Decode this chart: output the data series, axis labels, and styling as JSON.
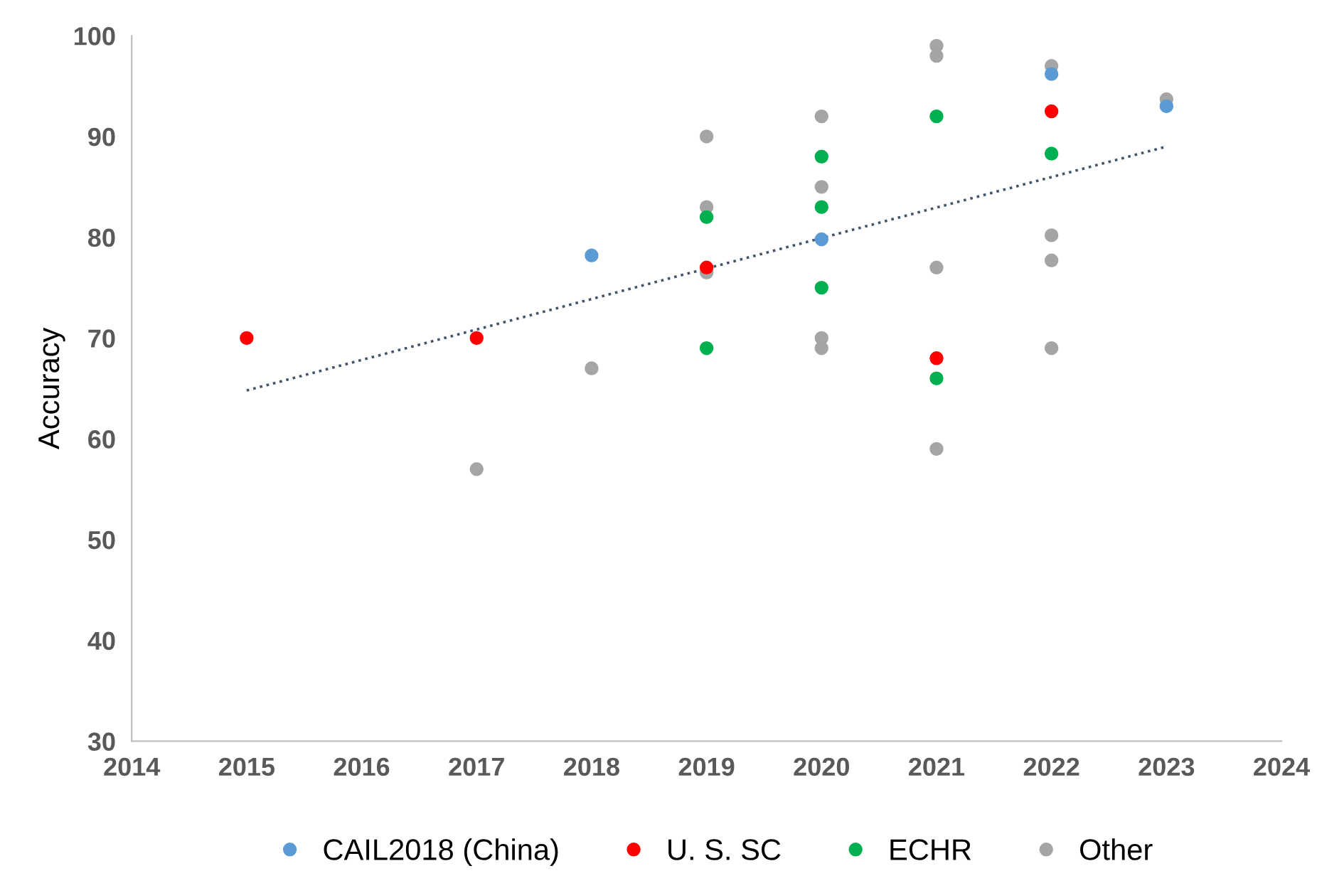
{
  "chart_data": {
    "type": "scatter",
    "ylabel": "Accuracy",
    "xlim": [
      2014,
      2024
    ],
    "xticks": [
      2014,
      2015,
      2016,
      2017,
      2018,
      2019,
      2020,
      2021,
      2022,
      2023,
      2024
    ],
    "ylim": [
      30,
      100
    ],
    "yticks": [
      30,
      40,
      50,
      60,
      70,
      80,
      90,
      100
    ],
    "grid": false,
    "legend": "bottom",
    "marker": "circle",
    "series": [
      {
        "name": "CAIL2018 (China)",
        "color": "#5b9bd5",
        "x": [
          2018,
          2020,
          2022,
          2023
        ],
        "values": [
          78.2,
          79.8,
          96.2,
          93
        ]
      },
      {
        "name": "U. S. SC",
        "color": "#ff0000",
        "x": [
          2015,
          2017,
          2019,
          2021,
          2022
        ],
        "values": [
          70,
          70,
          77,
          68,
          92.5
        ]
      },
      {
        "name": "ECHR",
        "color": "#00b050",
        "x": [
          2019,
          2019,
          2020,
          2020,
          2020,
          2021,
          2021,
          2022
        ],
        "values": [
          82,
          69,
          88,
          83,
          75,
          92,
          66,
          88.3
        ]
      },
      {
        "name": "Other",
        "color": "#a5a5a5",
        "x": [
          2017,
          2018,
          2019,
          2019,
          2019,
          2020,
          2020,
          2020,
          2020,
          2021,
          2021,
          2021,
          2021,
          2022,
          2022,
          2022,
          2022,
          2023
        ],
        "values": [
          57,
          67,
          90,
          83,
          76.5,
          92,
          85,
          70,
          69,
          99,
          98,
          77,
          59,
          97,
          80.2,
          77.7,
          69,
          93.7
        ]
      },
      {
        "type": "line",
        "color": "#44546a",
        "line_style": "dotted",
        "marker": "none",
        "x": [
          2015,
          2023
        ],
        "values": [
          64.8,
          89.0
        ]
      }
    ]
  }
}
